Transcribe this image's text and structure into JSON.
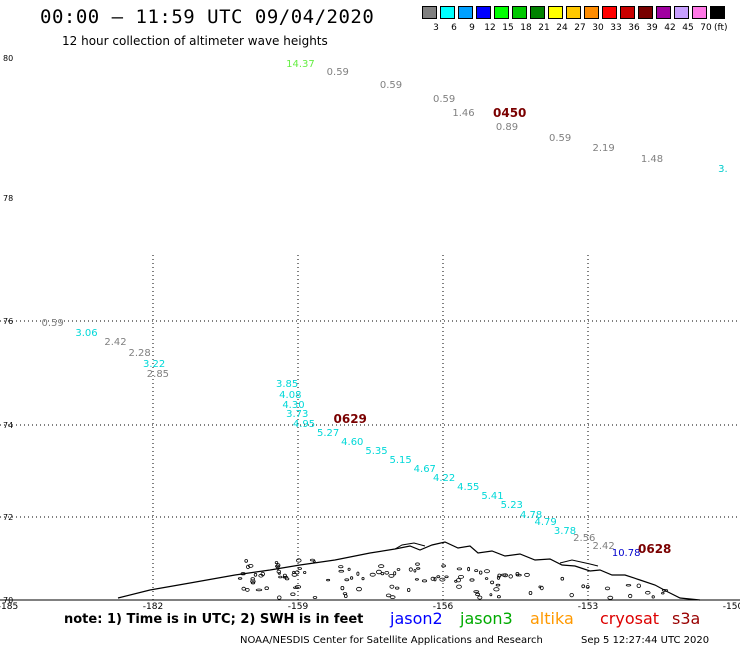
{
  "header": {
    "title": "00:00 – 11:59 UTC 09/04/2020",
    "subtitle": "12 hour collection of altimeter wave heights"
  },
  "legend": {
    "unit": "(ft)",
    "bins": [
      {
        "label": "3",
        "color": "#808080"
      },
      {
        "label": "6",
        "color": "#00ffff"
      },
      {
        "label": "9",
        "color": "#00a0ff"
      },
      {
        "label": "12",
        "color": "#0000ff"
      },
      {
        "label": "15",
        "color": "#00ff00"
      },
      {
        "label": "18",
        "color": "#00c800"
      },
      {
        "label": "21",
        "color": "#008200"
      },
      {
        "label": "24",
        "color": "#ffff00"
      },
      {
        "label": "27",
        "color": "#ffc800"
      },
      {
        "label": "30",
        "color": "#ff8c00"
      },
      {
        "label": "33",
        "color": "#ff0000"
      },
      {
        "label": "36",
        "color": "#c80000"
      },
      {
        "label": "39",
        "color": "#780000"
      },
      {
        "label": "42",
        "color": "#a000a0"
      },
      {
        "label": "45",
        "color": "#c8a0ff"
      },
      {
        "label": "70",
        "color": "#ff78e6"
      },
      {
        "label": "",
        "color": "#000000"
      }
    ]
  },
  "axes": {
    "lat_labels": [
      "80",
      "78",
      "76",
      "74",
      "72",
      "70"
    ],
    "lon_labels": [
      "-185",
      "-182",
      "-159",
      "-156",
      "-153",
      "-150"
    ]
  },
  "passes": [
    {
      "time": "0450",
      "lat": 79.2,
      "lon": -154.8
    },
    {
      "time": "0629",
      "lat": 74.1,
      "lon": -158.1
    },
    {
      "time": "0628",
      "lat": 71.2,
      "lon": -151.8
    }
  ],
  "observations": {
    "track_north": [
      {
        "v": "14.37",
        "color": "#66ee44",
        "lat": 79.9,
        "lon": -159.3
      },
      {
        "v": "0.59",
        "color": "#808080",
        "lat": 79.78,
        "lon": -158.2
      },
      {
        "v": "0.59",
        "color": "#808080",
        "lat": 79.6,
        "lon": -157.1
      },
      {
        "v": "0.59",
        "color": "#808080",
        "lat": 79.4,
        "lon": -156.0
      },
      {
        "v": "1.46",
        "color": "#808080",
        "lat": 79.2,
        "lon": -155.6
      },
      {
        "v": "0.89",
        "color": "#808080",
        "lat": 79.0,
        "lon": -154.7
      },
      {
        "v": "0.59",
        "color": "#808080",
        "lat": 78.85,
        "lon": -153.6
      },
      {
        "v": "2.19",
        "color": "#808080",
        "lat": 78.7,
        "lon": -152.7
      },
      {
        "v": "1.48",
        "color": "#808080",
        "lat": 78.55,
        "lon": -151.7
      },
      {
        "v": "3.",
        "color": "#00cccc",
        "lat": 78.4,
        "lon": -150.1
      }
    ],
    "track_main": [
      {
        "v": "0.59",
        "color": "#808080",
        "lat": 75.95,
        "lon": -184.1
      },
      {
        "v": "3.06",
        "color": "#00d8d8",
        "lat": 75.75,
        "lon": -183.4
      },
      {
        "v": "2.42",
        "color": "#808080",
        "lat": 75.57,
        "lon": -182.8
      },
      {
        "v": "2.28",
        "color": "#808080",
        "lat": 75.36,
        "lon": -182.3
      },
      {
        "v": "3.22",
        "color": "#00d8d8",
        "lat": 75.15,
        "lon": -182.0
      },
      {
        "v": "2.85",
        "color": "#808080",
        "lat": 74.96,
        "lon": -181.4
      },
      {
        "v": "3.85",
        "color": "#00d8d8",
        "lat": 74.76,
        "lon": -160.9
      },
      {
        "v": "4.08",
        "color": "#00d8d8",
        "lat": 74.56,
        "lon": -160.4
      },
      {
        "v": "4.30",
        "color": "#00d8d8",
        "lat": 74.36,
        "lon": -159.9
      },
      {
        "v": "3.73",
        "color": "#00d8d8",
        "lat": 74.2,
        "lon": -159.3
      },
      {
        "v": "4.95",
        "color": "#00d8d8",
        "lat": 74.0,
        "lon": -158.9
      },
      {
        "v": "5.27",
        "color": "#00d8d8",
        "lat": 73.8,
        "lon": -158.4
      },
      {
        "v": "4.60",
        "color": "#00d8d8",
        "lat": 73.6,
        "lon": -157.9
      },
      {
        "v": "5.35",
        "color": "#00d8d8",
        "lat": 73.42,
        "lon": -157.4
      },
      {
        "v": "5.15",
        "color": "#00d8d8",
        "lat": 73.22,
        "lon": -156.9
      },
      {
        "v": "4.67",
        "color": "#00d8d8",
        "lat": 73.02,
        "lon": -156.4
      },
      {
        "v": "4.22",
        "color": "#00d8d8",
        "lat": 72.82,
        "lon": -156.0
      },
      {
        "v": "4.55",
        "color": "#00d8d8",
        "lat": 72.62,
        "lon": -155.5
      },
      {
        "v": "5.41",
        "color": "#00d8d8",
        "lat": 72.43,
        "lon": -155.0
      },
      {
        "v": "5.23",
        "color": "#00d8d8",
        "lat": 72.23,
        "lon": -154.6
      },
      {
        "v": "4.78",
        "color": "#00d8d8",
        "lat": 72.03,
        "lon": -154.2
      },
      {
        "v": "4.79",
        "color": "#00d8d8",
        "lat": 71.85,
        "lon": -153.9
      },
      {
        "v": "3.78",
        "color": "#00d8d8",
        "lat": 71.65,
        "lon": -153.5
      },
      {
        "v": "2.56",
        "color": "#808080",
        "lat": 71.47,
        "lon": -153.1
      },
      {
        "v": "2.42",
        "color": "#808080",
        "lat": 71.28,
        "lon": -152.7
      },
      {
        "v": "10.78",
        "color": "#0000cc",
        "lat": 71.1,
        "lon": -152.3
      }
    ]
  },
  "footer": {
    "note": "note: 1) Time is in UTC; 2) SWH is in feet",
    "satellites": [
      {
        "name": "jason2",
        "color": "#0000ff"
      },
      {
        "name": "jason3",
        "color": "#00aa00"
      },
      {
        "name": "altika",
        "color": "#ff9900"
      },
      {
        "name": "cryosat",
        "color": "#dd0000"
      },
      {
        "name": "s3a",
        "color": "#990000"
      }
    ],
    "credit": "NOAA/NESDIS Center for Satellite Applications and Research",
    "timestamp": "Sep  5 12:27:44 UTC 2020"
  }
}
